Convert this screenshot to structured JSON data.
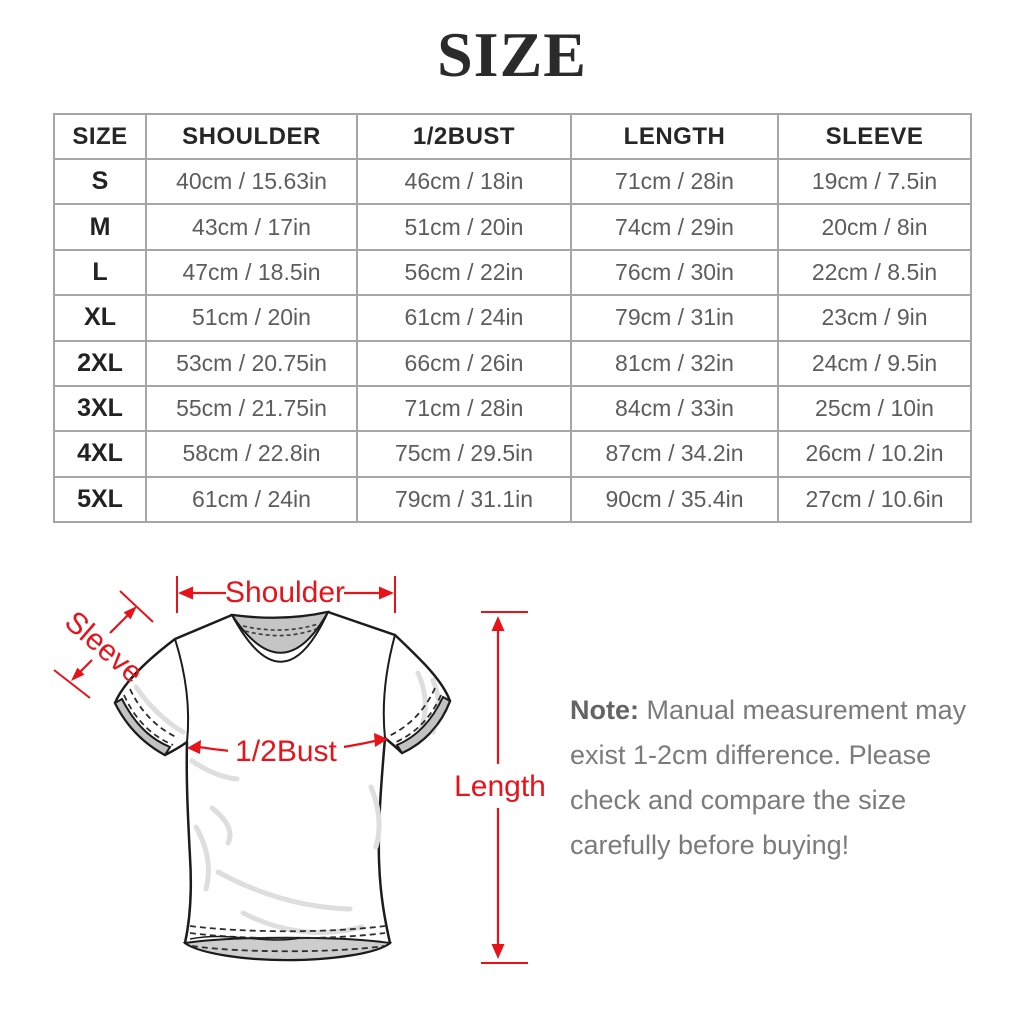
{
  "title": "SIZE",
  "table": {
    "headers": [
      "SIZE",
      "SHOULDER",
      "1/2BUST",
      "LENGTH",
      "SLEEVE"
    ],
    "rows": [
      {
        "size": "S",
        "shoulder": "40cm / 15.63in",
        "bust": "46cm / 18in",
        "length": "71cm / 28in",
        "sleeve": "19cm / 7.5in"
      },
      {
        "size": "M",
        "shoulder": "43cm / 17in",
        "bust": "51cm / 20in",
        "length": "74cm / 29in",
        "sleeve": "20cm / 8in"
      },
      {
        "size": "L",
        "shoulder": "47cm / 18.5in",
        "bust": "56cm / 22in",
        "length": "76cm / 30in",
        "sleeve": "22cm / 8.5in"
      },
      {
        "size": "XL",
        "shoulder": "51cm / 20in",
        "bust": "61cm / 24in",
        "length": "79cm / 31in",
        "sleeve": "23cm / 9in"
      },
      {
        "size": "2XL",
        "shoulder": "53cm / 20.75in",
        "bust": "66cm / 26in",
        "length": "81cm / 32in",
        "sleeve": "24cm / 9.5in"
      },
      {
        "size": "3XL",
        "shoulder": "55cm / 21.75in",
        "bust": "71cm / 28in",
        "length": "84cm / 33in",
        "sleeve": "25cm / 10in"
      },
      {
        "size": "4XL",
        "shoulder": "58cm / 22.8in",
        "bust": "75cm / 29.5in",
        "length": "87cm / 34.2in",
        "sleeve": "26cm / 10.2in"
      },
      {
        "size": "5XL",
        "shoulder": "61cm / 24in",
        "bust": "79cm / 31.1in",
        "length": "90cm / 35.4in",
        "sleeve": "27cm / 10.6in"
      }
    ]
  },
  "diagram": {
    "accent_color": "#e8131a",
    "labels": {
      "shoulder": "Shoulder",
      "sleeve": "Sleeve",
      "bust": "1/2Bust",
      "length": "Length"
    }
  },
  "note": {
    "prefix": "Note:",
    "text": " Manual measurement may exist 1-2cm difference. Please check and compare the size carefully before buying!"
  }
}
